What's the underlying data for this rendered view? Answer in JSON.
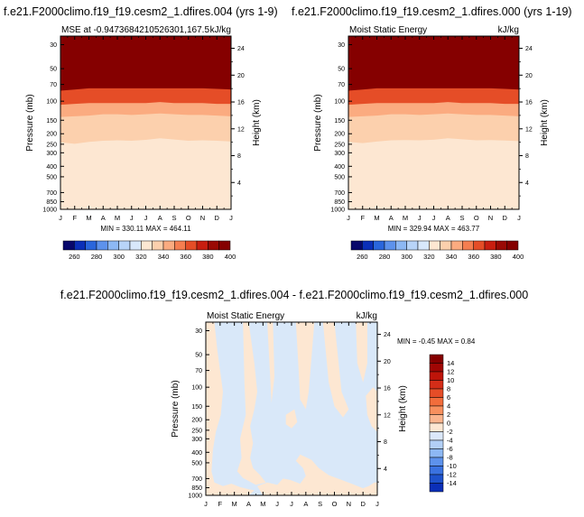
{
  "chart_data": [
    {
      "type": "heatmap",
      "title": "f.e21.F2000climo.f19_f19.cesm2_1.dfires.004 (yrs 1-9)",
      "left_string": "MSE at -0.9473684210526301,167.5",
      "right_string": "kJ/kg",
      "ylabel": "Pressure (mb)",
      "y2label": "Height (km)",
      "minmax_text": "MIN = 330.11 MAX = 464.11",
      "x_ticks": [
        "J",
        "F",
        "M",
        "A",
        "M",
        "J",
        "J",
        "A",
        "S",
        "O",
        "N",
        "D",
        "J"
      ],
      "y_ticks": [
        "30",
        "50",
        "70",
        "100",
        "150",
        "200",
        "250",
        "300",
        "400",
        "500",
        "700",
        "850",
        "1000"
      ],
      "y_ticks_values": [
        30,
        50,
        70,
        100,
        150,
        200,
        250,
        300,
        400,
        500,
        700,
        850,
        1000
      ],
      "y2_ticks": [
        "24",
        "20",
        "16",
        "12",
        "8",
        "4"
      ],
      "y2_ticks_values": [
        24,
        20,
        16,
        12,
        8,
        4
      ],
      "ylim": [
        1000,
        25
      ],
      "colorbar_labels": [
        "260",
        "280",
        "300",
        "320",
        "340",
        "360",
        "380",
        "400"
      ],
      "colorbar_colors": [
        "#08086b",
        "#0b2fb8",
        "#2a66dc",
        "#5d92ec",
        "#8db8f4",
        "#b8d4f8",
        "#d8e8fb",
        "#fde7d2",
        "#fcd0ad",
        "#fbab80",
        "#f57e50",
        "#e54d27",
        "#c81e10",
        "#9a0a05",
        "#850000"
      ],
      "bands": [
        {
          "name": "lower",
          "top_mb": [
            240,
            248,
            238,
            232,
            230,
            232,
            228,
            220,
            226,
            232,
            230,
            232,
            236
          ],
          "color": "#fde7d2"
        },
        {
          "name": "mid",
          "top_mb": [
            140,
            138,
            136,
            132,
            132,
            134,
            132,
            130,
            132,
            134,
            134,
            136,
            138
          ],
          "color": "#fcd0ad"
        },
        {
          "name": "mid-upper",
          "top_mb": [
            108,
            106,
            104,
            104,
            104,
            104,
            104,
            102,
            104,
            104,
            104,
            106,
            106
          ],
          "color": "#fbab80"
        },
        {
          "name": "upper",
          "top_mb": [
            80,
            78,
            76,
            76,
            76,
            76,
            76,
            76,
            76,
            76,
            76,
            77,
            78
          ],
          "color": "#e54d27"
        },
        {
          "name": "top",
          "top_mb": [
            25,
            25,
            25,
            25,
            25,
            25,
            25,
            25,
            25,
            25,
            25,
            25,
            25
          ],
          "color": "#850000"
        }
      ]
    },
    {
      "type": "heatmap",
      "title": "f.e21.F2000climo.f19_f19.cesm2_1.dfires.000 (yrs 1-19)",
      "left_string": "Moist Static Energy",
      "right_string": "kJ/kg",
      "ylabel": "Pressure (mb)",
      "y2label": "Height (km)",
      "minmax_text": "MIN = 329.94 MAX = 463.77",
      "x_ticks": [
        "J",
        "F",
        "M",
        "A",
        "M",
        "J",
        "J",
        "A",
        "S",
        "O",
        "N",
        "D",
        "J"
      ],
      "y_ticks": [
        "30",
        "50",
        "70",
        "100",
        "150",
        "200",
        "250",
        "300",
        "400",
        "500",
        "700",
        "850",
        "1000"
      ],
      "y_ticks_values": [
        30,
        50,
        70,
        100,
        150,
        200,
        250,
        300,
        400,
        500,
        700,
        850,
        1000
      ],
      "y2_ticks": [
        "24",
        "20",
        "16",
        "12",
        "8",
        "4"
      ],
      "y2_ticks_values": [
        24,
        20,
        16,
        12,
        8,
        4
      ],
      "ylim": [
        1000,
        25
      ],
      "colorbar_labels": [
        "260",
        "280",
        "300",
        "320",
        "340",
        "360",
        "380",
        "400"
      ],
      "colorbar_colors": [
        "#08086b",
        "#0b2fb8",
        "#2a66dc",
        "#5d92ec",
        "#8db8f4",
        "#b8d4f8",
        "#d8e8fb",
        "#fde7d2",
        "#fcd0ad",
        "#fbab80",
        "#f57e50",
        "#e54d27",
        "#c81e10",
        "#9a0a05",
        "#850000"
      ],
      "bands": [
        {
          "name": "lower",
          "top_mb": [
            238,
            244,
            236,
            230,
            229,
            230,
            227,
            220,
            225,
            230,
            229,
            231,
            234
          ],
          "color": "#fde7d2"
        },
        {
          "name": "mid",
          "top_mb": [
            140,
            138,
            136,
            132,
            132,
            134,
            132,
            130,
            132,
            134,
            134,
            136,
            138
          ],
          "color": "#fcd0ad"
        },
        {
          "name": "mid-upper",
          "top_mb": [
            108,
            106,
            104,
            104,
            104,
            104,
            104,
            102,
            104,
            104,
            104,
            106,
            106
          ],
          "color": "#fbab80"
        },
        {
          "name": "upper",
          "top_mb": [
            80,
            78,
            76,
            76,
            76,
            76,
            76,
            76,
            76,
            76,
            76,
            77,
            78
          ],
          "color": "#e54d27"
        },
        {
          "name": "top",
          "top_mb": [
            25,
            25,
            25,
            25,
            25,
            25,
            25,
            25,
            25,
            25,
            25,
            25,
            25
          ],
          "color": "#850000"
        }
      ]
    },
    {
      "type": "heatmap",
      "title": "f.e21.F2000climo.f19_f19.cesm2_1.dfires.004 - f.e21.F2000climo.f19_f19.cesm2_1.dfires.000",
      "left_string": "Moist Static Energy",
      "right_string": "kJ/kg",
      "ylabel": "Pressure (mb)",
      "y2label": "Height (km)",
      "minmax_text": "MIN = -0.45 MAX =  0.84",
      "x_ticks": [
        "J",
        "F",
        "M",
        "A",
        "M",
        "J",
        "J",
        "A",
        "S",
        "O",
        "N",
        "D",
        "J"
      ],
      "y_ticks": [
        "30",
        "50",
        "70",
        "100",
        "150",
        "200",
        "250",
        "300",
        "400",
        "500",
        "700",
        "850",
        "1000"
      ],
      "y_ticks_values": [
        30,
        50,
        70,
        100,
        150,
        200,
        250,
        300,
        400,
        500,
        700,
        850,
        1000
      ],
      "y2_ticks": [
        "24",
        "20",
        "16",
        "12",
        "8",
        "4"
      ],
      "y2_ticks_values": [
        24,
        20,
        16,
        12,
        8,
        4
      ],
      "ylim": [
        1000,
        25
      ],
      "colorbar_labels": [
        "14",
        "12",
        "10",
        "8",
        "6",
        "4",
        "2",
        "0",
        "-2",
        "-4",
        "-6",
        "-8",
        "-10",
        "-12",
        "-14"
      ],
      "colorbar_colors": [
        "#850000",
        "#a00604",
        "#be1409",
        "#d42d18",
        "#e54d27",
        "#f26d3b",
        "#f8905e",
        "#fbb58e",
        "#fde7d2",
        "#dbe8fa",
        "#b2cff6",
        "#8db8f4",
        "#5d92ec",
        "#3a72e0",
        "#1e52cc",
        "#0b2fb8"
      ],
      "background_color": "#d9e8f9",
      "positive_color": "#fde7d2",
      "positive_regions": [
        [
          [
            0,
            1000
          ],
          [
            0,
            25
          ],
          [
            0.6,
            25
          ],
          [
            0.8,
            45
          ],
          [
            1.0,
            70
          ],
          [
            1.2,
            110
          ],
          [
            1.05,
            180
          ],
          [
            0.7,
            260
          ],
          [
            0.5,
            380
          ],
          [
            0.4,
            600
          ],
          [
            0.6,
            760
          ],
          [
            1.2,
            820
          ],
          [
            1.8,
            780
          ],
          [
            2.4,
            840
          ],
          [
            3.0,
            880
          ],
          [
            3.4,
            900
          ],
          [
            3.0,
            1000
          ]
        ],
        [
          [
            2.6,
            25
          ],
          [
            3.0,
            25
          ],
          [
            3.4,
            60
          ],
          [
            3.6,
            110
          ],
          [
            3.4,
            160
          ],
          [
            3.1,
            230
          ],
          [
            3.3,
            330
          ],
          [
            3.1,
            450
          ],
          [
            3.3,
            560
          ],
          [
            3.8,
            650
          ],
          [
            4.2,
            760
          ],
          [
            3.5,
            800
          ],
          [
            2.6,
            690
          ],
          [
            2.2,
            600
          ],
          [
            2.5,
            450
          ],
          [
            2.4,
            300
          ],
          [
            2.8,
            180
          ],
          [
            2.7,
            90
          ]
        ],
        [
          [
            4.3,
            25
          ],
          [
            4.7,
            25
          ],
          [
            4.8,
            80
          ],
          [
            4.6,
            140
          ],
          [
            4.5,
            80
          ]
        ],
        [
          [
            3.6,
            820
          ],
          [
            4.3,
            760
          ],
          [
            5.0,
            800
          ],
          [
            5.4,
            700
          ],
          [
            5.9,
            720
          ],
          [
            6.6,
            780
          ],
          [
            7.0,
            660
          ],
          [
            6.8,
            560
          ],
          [
            6.3,
            480
          ],
          [
            6.6,
            420
          ],
          [
            7.4,
            470
          ],
          [
            7.9,
            560
          ],
          [
            8.6,
            650
          ],
          [
            9.5,
            720
          ],
          [
            10.3,
            790
          ],
          [
            11.0,
            860
          ],
          [
            11.4,
            820
          ],
          [
            11.8,
            760
          ],
          [
            12.0,
            760
          ],
          [
            12.0,
            1000
          ],
          [
            4.0,
            1000
          ]
        ],
        [
          [
            6.3,
            25
          ],
          [
            7.6,
            25
          ],
          [
            7.2,
            110
          ],
          [
            7.0,
            160
          ],
          [
            6.6,
            130
          ],
          [
            6.5,
            70
          ]
        ],
        [
          [
            8.2,
            25
          ],
          [
            9.0,
            25
          ],
          [
            9.5,
            110
          ],
          [
            10.0,
            160
          ],
          [
            9.6,
            190
          ],
          [
            9.0,
            150
          ],
          [
            8.6,
            90
          ]
        ],
        [
          [
            10.5,
            25
          ],
          [
            11.3,
            25
          ],
          [
            11.3,
            60
          ],
          [
            11.0,
            90
          ],
          [
            10.6,
            60
          ]
        ],
        [
          [
            11.2,
            120
          ],
          [
            11.7,
            100
          ],
          [
            12.0,
            110
          ],
          [
            12.0,
            260
          ],
          [
            11.6,
            230
          ],
          [
            11.3,
            180
          ]
        ],
        [
          [
            5.6,
            180
          ],
          [
            6.2,
            160
          ],
          [
            6.4,
            210
          ],
          [
            6.0,
            240
          ],
          [
            5.6,
            220
          ]
        ]
      ]
    }
  ]
}
